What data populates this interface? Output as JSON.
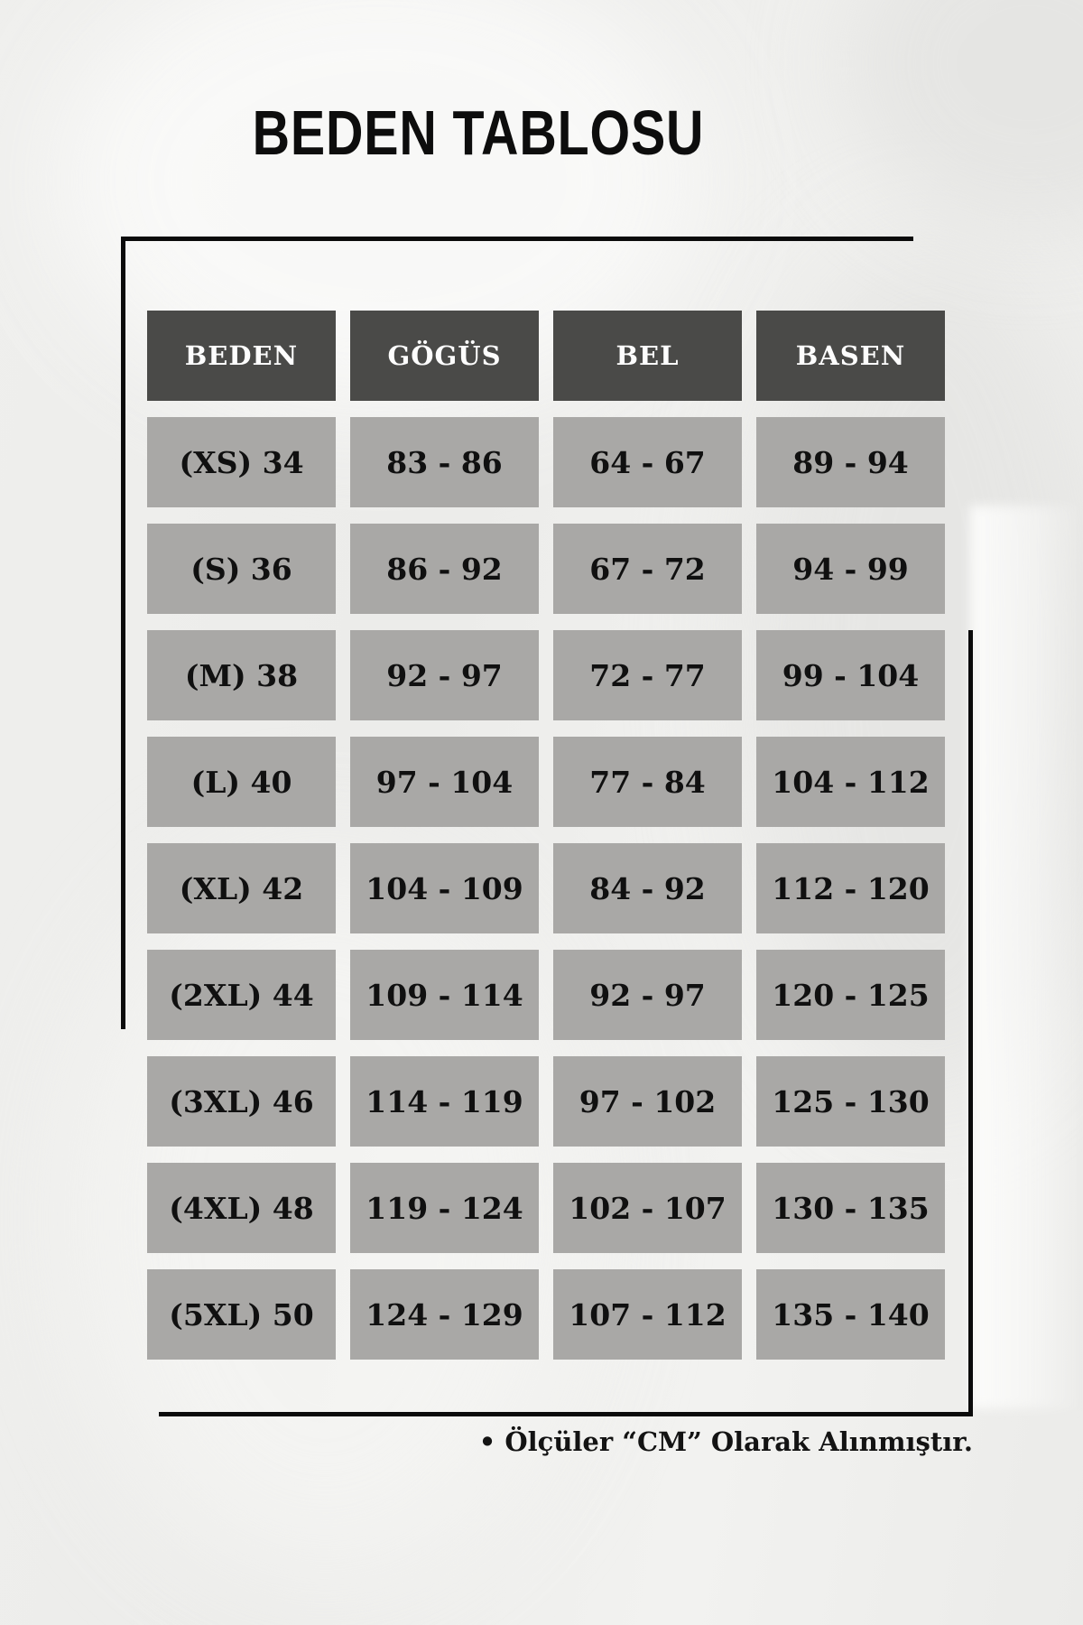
{
  "title": "BEDEN TABLOSU",
  "footer_note": "• Ölçüler “CM” Olarak Alınmıştır.",
  "chart_data": {
    "type": "table",
    "title": "BEDEN TABLOSU",
    "columns": [
      "BEDEN",
      "GÖGÜS",
      "BEL",
      "BASEN"
    ],
    "rows": [
      [
        "(XS) 34",
        "83 - 86",
        "64 - 67",
        "89 - 94"
      ],
      [
        "(S) 36",
        "86 - 92",
        "67 - 72",
        "94 - 99"
      ],
      [
        "(M) 38",
        "92 - 97",
        "72 - 77",
        "99 - 104"
      ],
      [
        "(L) 40",
        "97 - 104",
        "77 - 84",
        "104 - 112"
      ],
      [
        "(XL) 42",
        "104 - 109",
        "84 - 92",
        "112 - 120"
      ],
      [
        "(2XL) 44",
        "109 - 114",
        "92 - 97",
        "120 - 125"
      ],
      [
        "(3XL) 46",
        "114 - 119",
        "97 - 102",
        "125 - 130"
      ],
      [
        "(4XL) 48",
        "119 - 124",
        "102 - 107",
        "130 - 135"
      ],
      [
        "(5XL) 50",
        "124 - 129",
        "107 - 112",
        "135 - 140"
      ]
    ],
    "note": "Ölçüler “CM” Olarak Alınmıştır.",
    "units": "CM",
    "layout": {
      "grid": "4 columns × 10 rows (incl. header)",
      "gridlines": false,
      "legend": "none"
    }
  },
  "colors": {
    "page_bg": "#ececea",
    "header_bg": "#4a4a48",
    "cell_bg": "#a9a8a6",
    "header_text": "#fdfdfd",
    "cell_text": "#101010",
    "rule_line": "#0b0b0b"
  }
}
